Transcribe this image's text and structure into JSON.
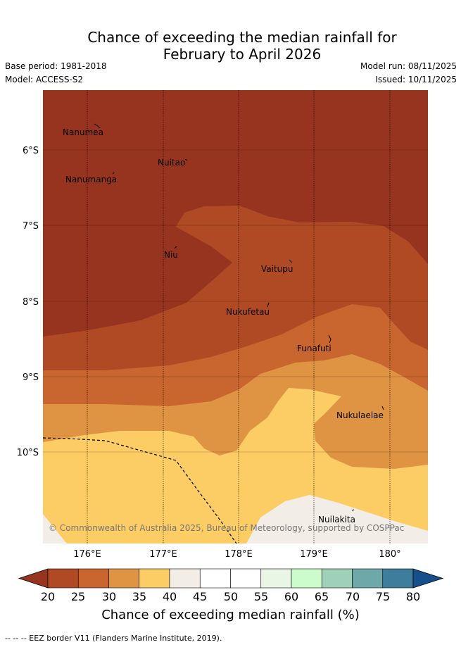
{
  "header": {
    "title_line1": "Chance of exceeding the median rainfall for",
    "title_line2": "February to April 2026",
    "base_period": "Base period: 1981-2018",
    "model": "Model: ACCESS-S2",
    "model_run": "Model run: 08/11/2025",
    "issued": "Issued: 10/11/2025"
  },
  "map": {
    "lat_labels": [
      "6°S",
      "7°S",
      "8°S",
      "9°S",
      "10°S"
    ],
    "lon_labels": [
      "176°E",
      "177°E",
      "178°E",
      "179°E",
      "180°"
    ],
    "places": [
      "Nanumea",
      "Nuitao",
      "Nanumanga",
      "Niu",
      "Vaitupu",
      "Nukufetau",
      "Funafuti",
      "Nukulaelae",
      "Nuilakita"
    ],
    "copyright": "© Commonwealth of Australia 2025, Bureau of Meteorology, supported by COSPPac",
    "colors": {
      "lt20": "#97341f",
      "c20_25": "#b04a24",
      "c25_30": "#c9652e",
      "c30_35": "#df9443",
      "c35_40": "#fccc65",
      "c40_45": "#f2ede6",
      "grid": "#000000",
      "eez": "#000000"
    }
  },
  "colorbar": {
    "ticks": [
      "20",
      "25",
      "30",
      "35",
      "40",
      "45",
      "50",
      "55",
      "60",
      "65",
      "70",
      "75",
      "80"
    ],
    "colors": [
      "#97341f",
      "#b04a24",
      "#c9652e",
      "#df9443",
      "#fccc65",
      "#f2ede6",
      "#ffffff",
      "#ffffff",
      "#e9f6e6",
      "#ccfccc",
      "#9fd1ba",
      "#6ea8a9",
      "#3f7d9c",
      "#154f8c"
    ],
    "label": "Chance of exceeding median rainfall (%)"
  },
  "footnote": "-- -- -- EEZ border V11 (Flanders Marine Institute, 2019)."
}
